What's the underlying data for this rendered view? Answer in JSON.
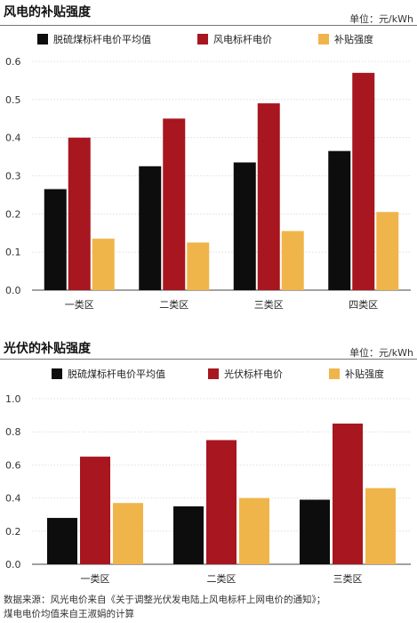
{
  "source": {
    "line1": "数据来源：风光电价来自《关于调整光伏发电陆上风电标杆上网电价的通知》；",
    "line2": "煤电电价均值来自王淑娟的计算"
  },
  "chart_data": [
    {
      "type": "bar",
      "title": "风电的补贴强度",
      "unit": "单位：元/kWh",
      "categories": [
        "一类区",
        "二类区",
        "三类区",
        "四类区"
      ],
      "series": [
        {
          "name": "脱硫煤标杆电价平均值",
          "color": "#0d0d0d",
          "values": [
            0.265,
            0.325,
            0.335,
            0.365
          ]
        },
        {
          "name": "风电标杆电价",
          "color": "#a8161f",
          "values": [
            0.4,
            0.45,
            0.49,
            0.57
          ]
        },
        {
          "name": "补贴强度",
          "color": "#f0b54a",
          "values": [
            0.135,
            0.125,
            0.155,
            0.205
          ]
        }
      ],
      "ylim": [
        0,
        0.6
      ],
      "yticks": [
        "0.0",
        "0.1",
        "0.2",
        "0.3",
        "0.4",
        "0.5",
        "0.6"
      ],
      "grid": true,
      "legend": "top"
    },
    {
      "type": "bar",
      "title": "光伏的补贴强度",
      "unit": "单位：元/kWh",
      "categories": [
        "一类区",
        "二类区",
        "三类区"
      ],
      "series": [
        {
          "name": "脱硫煤标杆电价平均值",
          "color": "#0d0d0d",
          "values": [
            0.28,
            0.35,
            0.39
          ]
        },
        {
          "name": "光伏标杆电价",
          "color": "#a8161f",
          "values": [
            0.65,
            0.75,
            0.85
          ]
        },
        {
          "name": "补贴强度",
          "color": "#f0b54a",
          "values": [
            0.37,
            0.4,
            0.46
          ]
        }
      ],
      "ylim": [
        0,
        1.0
      ],
      "yticks": [
        "0.0",
        "0.2",
        "0.4",
        "0.6",
        "0.8",
        "1.0"
      ],
      "grid": true,
      "legend": "top"
    }
  ]
}
